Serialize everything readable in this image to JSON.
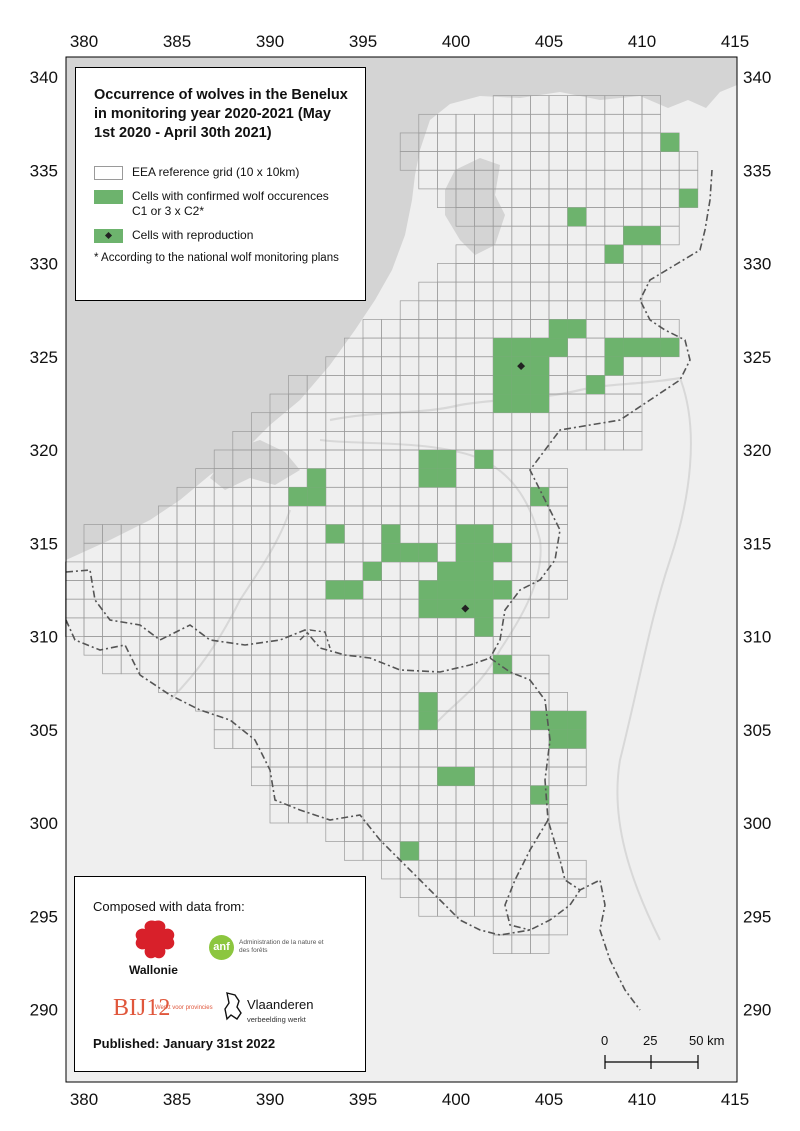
{
  "axes": {
    "x_ticks": [
      "380",
      "385",
      "390",
      "395",
      "400",
      "405",
      "410",
      "415"
    ],
    "y_ticks": [
      "340",
      "335",
      "330",
      "325",
      "320",
      "315",
      "310",
      "305",
      "300",
      "295",
      "290"
    ]
  },
  "legend": {
    "title": "Occurrence of wolves in the Benelux in monitoring year 2020-2021 (May 1st 2020 - April 30th 2021)",
    "grid_label": "EEA reference grid (10 x 10km)",
    "confirmed_label": "Cells with confirmed wolf occurences C1 or 3 x C2*",
    "reproduction_label": "Cells with reproduction",
    "note": "* According to the national wolf monitoring plans"
  },
  "credits": {
    "title": "Composed with data from:",
    "wallonie": "Wallonie",
    "anf_short": "anf",
    "anf_name": "Administration de la nature et des forêts",
    "bij12": "BIJ12",
    "bij12_sub": "Werkt voor provincies",
    "vlaanderen": "Vlaanderen",
    "vlaanderen_sub": "verbeelding werkt",
    "published": "Published: January 31st 2022"
  },
  "scale_bar": {
    "labels": [
      "0",
      "25",
      "50 km"
    ]
  },
  "colors": {
    "sea": "#d3d3d3",
    "land": "#f0f0f0",
    "inland": "#e8e8e8",
    "grid_line": "#9a9a9a",
    "confirmed": "#6db36d",
    "reproduction": "#222222",
    "border": "#555555"
  },
  "map_data": {
    "grid_rows": [
      {
        "y": 338,
        "from": 402,
        "to": 411
      },
      {
        "y": 337,
        "from": 398,
        "to": 411
      },
      {
        "y": 336,
        "from": 397,
        "to": 412
      },
      {
        "y": 335,
        "from": 397,
        "to": 413
      },
      {
        "y": 334,
        "from": 398,
        "to": 413
      },
      {
        "y": 333,
        "from": 399,
        "to": 413
      },
      {
        "y": 332,
        "from": 400,
        "to": 412
      },
      {
        "y": 331,
        "from": 401,
        "to": 412
      },
      {
        "y": 330,
        "from": 400,
        "to": 411
      },
      {
        "y": 329,
        "from": 399,
        "to": 411
      },
      {
        "y": 328,
        "from": 398,
        "to": 410
      },
      {
        "y": 327,
        "from": 397,
        "to": 411
      },
      {
        "y": 326,
        "from": 395,
        "to": 412
      },
      {
        "y": 325,
        "from": 394,
        "to": 412
      },
      {
        "y": 324,
        "from": 393,
        "to": 411
      },
      {
        "y": 323,
        "from": 391,
        "to": 410
      },
      {
        "y": 322,
        "from": 390,
        "to": 410
      },
      {
        "y": 321,
        "from": 389,
        "to": 410
      },
      {
        "y": 320,
        "from": 388,
        "to": 410
      },
      {
        "y": 319,
        "from": 387,
        "to": 404
      },
      {
        "y": 318,
        "from": 386,
        "to": 406
      },
      {
        "y": 317,
        "from": 385,
        "to": 406
      },
      {
        "y": 316,
        "from": 384,
        "to": 406
      },
      {
        "y": 315,
        "from": 380,
        "to": 406
      },
      {
        "y": 314,
        "from": 380,
        "to": 406
      },
      {
        "y": 313,
        "from": 379,
        "to": 406
      },
      {
        "y": 312,
        "from": 379,
        "to": 406
      },
      {
        "y": 311,
        "from": 379,
        "to": 405
      },
      {
        "y": 310,
        "from": 379,
        "to": 404
      },
      {
        "y": 309,
        "from": 380,
        "to": 404
      },
      {
        "y": 308,
        "from": 381,
        "to": 405
      },
      {
        "y": 307,
        "from": 384,
        "to": 405
      },
      {
        "y": 306,
        "from": 386,
        "to": 406
      },
      {
        "y": 305,
        "from": 387,
        "to": 407
      },
      {
        "y": 304,
        "from": 387,
        "to": 407
      },
      {
        "y": 303,
        "from": 389,
        "to": 407
      },
      {
        "y": 302,
        "from": 389,
        "to": 407
      },
      {
        "y": 301,
        "from": 390,
        "to": 406
      },
      {
        "y": 300,
        "from": 390,
        "to": 406
      },
      {
        "y": 299,
        "from": 393,
        "to": 406
      },
      {
        "y": 298,
        "from": 394,
        "to": 406
      },
      {
        "y": 297,
        "from": 396,
        "to": 407
      },
      {
        "y": 296,
        "from": 397,
        "to": 407
      },
      {
        "y": 295,
        "from": 398,
        "to": 406
      },
      {
        "y": 294,
        "from": 402,
        "to": 406
      },
      {
        "y": 293,
        "from": 402,
        "to": 405
      }
    ],
    "confirmed_cells": [
      [
        411,
        336
      ],
      [
        412,
        333
      ],
      [
        406,
        332
      ],
      [
        409,
        331
      ],
      [
        410,
        331
      ],
      [
        408,
        330
      ],
      [
        405,
        326
      ],
      [
        406,
        326
      ],
      [
        402,
        325
      ],
      [
        403,
        325
      ],
      [
        404,
        325
      ],
      [
        405,
        325
      ],
      [
        408,
        325
      ],
      [
        409,
        325
      ],
      [
        410,
        325
      ],
      [
        411,
        325
      ],
      [
        402,
        324
      ],
      [
        403,
        324
      ],
      [
        404,
        324
      ],
      [
        408,
        324
      ],
      [
        402,
        323
      ],
      [
        403,
        323
      ],
      [
        404,
        323
      ],
      [
        407,
        323
      ],
      [
        402,
        322
      ],
      [
        403,
        322
      ],
      [
        404,
        322
      ],
      [
        398,
        319
      ],
      [
        399,
        319
      ],
      [
        401,
        319
      ],
      [
        398,
        318
      ],
      [
        399,
        318
      ],
      [
        392,
        318
      ],
      [
        391,
        317
      ],
      [
        392,
        317
      ],
      [
        404,
        317
      ],
      [
        393,
        315
      ],
      [
        396,
        315
      ],
      [
        400,
        315
      ],
      [
        401,
        315
      ],
      [
        396,
        314
      ],
      [
        397,
        314
      ],
      [
        398,
        314
      ],
      [
        400,
        314
      ],
      [
        401,
        314
      ],
      [
        402,
        314
      ],
      [
        395,
        313
      ],
      [
        399,
        313
      ],
      [
        400,
        313
      ],
      [
        401,
        313
      ],
      [
        393,
        312
      ],
      [
        394,
        312
      ],
      [
        398,
        312
      ],
      [
        399,
        312
      ],
      [
        400,
        312
      ],
      [
        401,
        312
      ],
      [
        402,
        312
      ],
      [
        398,
        311
      ],
      [
        399,
        311
      ],
      [
        400,
        311
      ],
      [
        401,
        311
      ],
      [
        401,
        310
      ],
      [
        402,
        308
      ],
      [
        398,
        306
      ],
      [
        404,
        305
      ],
      [
        405,
        305
      ],
      [
        406,
        305
      ],
      [
        398,
        305
      ],
      [
        405,
        304
      ],
      [
        406,
        304
      ],
      [
        399,
        302
      ],
      [
        400,
        302
      ],
      [
        404,
        301
      ],
      [
        397,
        298
      ]
    ],
    "reproduction_cells": [
      [
        403,
        324
      ],
      [
        400,
        311
      ]
    ]
  }
}
